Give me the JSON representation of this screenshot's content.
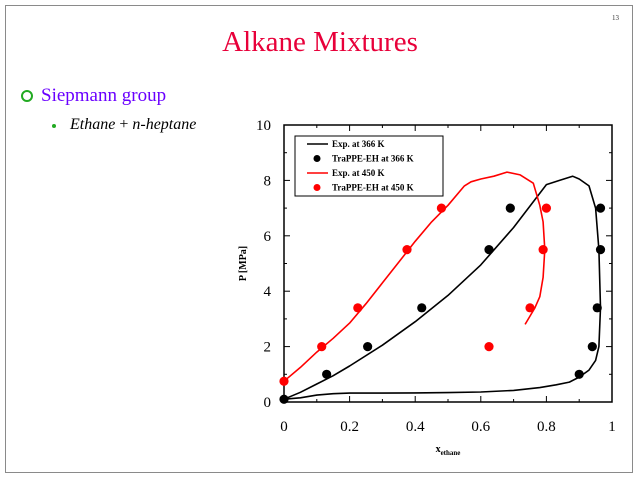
{
  "slide": {
    "number": "13",
    "title": "Alkane Mixtures",
    "bullet": "Siepmann group",
    "sub_bullet_italic_1": "Ethane",
    "sub_bullet_plus": " + ",
    "sub_bullet_italic_2": "n-heptane"
  },
  "colors": {
    "title": "#e8003a",
    "bullet_text": "#6a00ff",
    "bullet_marker": "#22aa22",
    "series_366": "#000000",
    "series_450": "#ff0000"
  },
  "chart_data": {
    "type": "line",
    "title": "",
    "xlabel_main": "x",
    "xlabel_sub": "ethane",
    "ylabel": "P [MPa]",
    "xlim": [
      0,
      1
    ],
    "ylim": [
      0,
      10
    ],
    "xticks": [
      0,
      0.2,
      0.4,
      0.6,
      0.8,
      1
    ],
    "xtick_labels": [
      "0",
      "0.2",
      "0.4",
      "0.6",
      "0.8",
      "1"
    ],
    "yticks": [
      0,
      2,
      4,
      6,
      8,
      10
    ],
    "ytick_labels": [
      "0",
      "2",
      "4",
      "6",
      "8",
      "10"
    ],
    "legend_position": "top-left",
    "series": [
      {
        "name": "Exp. at 366 K",
        "kind": "line",
        "color": "#000000",
        "x": [
          0.0,
          0.05,
          0.1,
          0.15,
          0.2,
          0.3,
          0.4,
          0.5,
          0.6,
          0.7,
          0.8,
          0.84,
          0.88,
          0.9,
          0.93,
          0.95,
          0.96,
          0.965,
          0.96,
          0.95,
          0.93,
          0.9,
          0.87,
          0.83,
          0.78,
          0.7,
          0.6,
          0.5,
          0.4,
          0.3,
          0.2,
          0.15,
          0.1,
          0.05,
          0.0
        ],
        "y": [
          0.1,
          0.35,
          0.65,
          0.95,
          1.3,
          2.05,
          2.9,
          3.85,
          4.95,
          6.3,
          7.85,
          8.0,
          8.15,
          8.05,
          7.8,
          7.0,
          5.5,
          3.4,
          2.0,
          1.5,
          1.15,
          0.9,
          0.72,
          0.62,
          0.52,
          0.42,
          0.36,
          0.34,
          0.33,
          0.32,
          0.32,
          0.3,
          0.25,
          0.15,
          0.1
        ]
      },
      {
        "name": "TraPPE-EH at 366 K",
        "kind": "points",
        "color": "#000000",
        "x": [
          0.0,
          0.13,
          0.255,
          0.42,
          0.625,
          0.69,
          0.9,
          0.94,
          0.955,
          0.965,
          0.965
        ],
        "y": [
          0.1,
          1.0,
          2.0,
          3.4,
          5.5,
          7.0,
          1.0,
          2.0,
          3.4,
          5.5,
          7.0
        ]
      },
      {
        "name": "Exp. at 450 K",
        "kind": "line",
        "color": "#ff0000",
        "x": [
          0.0,
          0.05,
          0.1,
          0.15,
          0.2,
          0.25,
          0.3,
          0.35,
          0.4,
          0.45,
          0.5,
          0.55,
          0.57,
          0.6,
          0.64,
          0.68,
          0.72,
          0.76,
          0.78,
          0.79,
          0.795,
          0.79,
          0.78,
          0.765,
          0.75,
          0.735
        ],
        "y": [
          0.75,
          1.25,
          1.8,
          2.3,
          2.85,
          3.55,
          4.3,
          5.05,
          5.8,
          6.5,
          7.1,
          7.8,
          7.95,
          8.05,
          8.15,
          8.3,
          8.2,
          7.9,
          7.1,
          6.5,
          5.5,
          4.5,
          3.8,
          3.4,
          3.1,
          2.8
        ]
      },
      {
        "name": "TraPPE-EH at 450 K",
        "kind": "points",
        "color": "#ff0000",
        "x": [
          0.0,
          0.115,
          0.225,
          0.375,
          0.48,
          0.625,
          0.75,
          0.79,
          0.8
        ],
        "y": [
          0.75,
          2.0,
          3.4,
          5.5,
          7.0,
          2.0,
          3.4,
          5.5,
          7.0
        ]
      }
    ]
  }
}
